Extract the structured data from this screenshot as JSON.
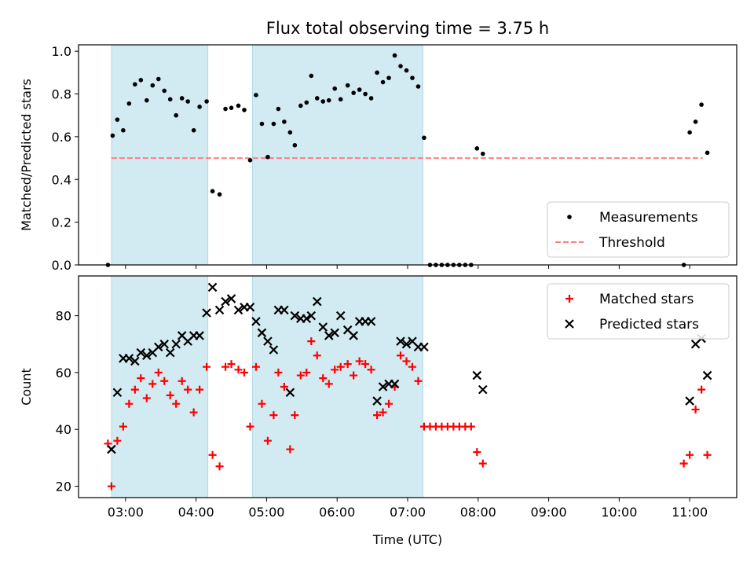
{
  "figure": {
    "title": "Flux total observing time = 3.75 h"
  },
  "chart_data": [
    {
      "type": "scatter",
      "ylabel": "Matched/Predicted stars",
      "xlabel": "",
      "xlim": [
        "02:20",
        "11:40"
      ],
      "ylim": [
        0,
        1.03
      ],
      "x_ticks": [
        "03:00",
        "04:00",
        "05:00",
        "06:00",
        "07:00",
        "08:00",
        "09:00",
        "10:00",
        "11:00"
      ],
      "y_ticks": [
        "0.0",
        "0.2",
        "0.4",
        "0.6",
        "0.8",
        "1.0"
      ],
      "grid": false,
      "legend_position": "lower-right",
      "shaded_intervals": [
        [
          "02:48",
          "04:10"
        ],
        [
          "04:48",
          "07:13"
        ]
      ],
      "threshold": {
        "name": "Threshold",
        "y": 0.5,
        "x_range": [
          "02:48",
          "11:11"
        ],
        "color": "#ff7f7f"
      },
      "series": [
        {
          "name": "Measurements",
          "color": "#000000",
          "marker": "dot",
          "points": [
            [
              "02:45",
              0.0
            ],
            [
              "02:49",
              0.605
            ],
            [
              "02:53",
              0.68
            ],
            [
              "02:58",
              0.63
            ],
            [
              "03:03",
              0.755
            ],
            [
              "03:08",
              0.845
            ],
            [
              "03:13",
              0.865
            ],
            [
              "03:18",
              0.77
            ],
            [
              "03:23",
              0.84
            ],
            [
              "03:28",
              0.87
            ],
            [
              "03:33",
              0.815
            ],
            [
              "03:38",
              0.775
            ],
            [
              "03:43",
              0.7
            ],
            [
              "03:48",
              0.78
            ],
            [
              "03:53",
              0.765
            ],
            [
              "03:58",
              0.63
            ],
            [
              "04:03",
              0.74
            ],
            [
              "04:09",
              0.765
            ],
            [
              "04:14",
              0.345
            ],
            [
              "04:20",
              0.33
            ],
            [
              "04:25",
              0.73
            ],
            [
              "04:30",
              0.735
            ],
            [
              "04:36",
              0.745
            ],
            [
              "04:41",
              0.725
            ],
            [
              "04:46",
              0.49
            ],
            [
              "04:51",
              0.795
            ],
            [
              "04:56",
              0.66
            ],
            [
              "05:01",
              0.505
            ],
            [
              "05:06",
              0.66
            ],
            [
              "05:10",
              0.73
            ],
            [
              "05:15",
              0.67
            ],
            [
              "05:20",
              0.62
            ],
            [
              "05:24",
              0.56
            ],
            [
              "05:29",
              0.745
            ],
            [
              "05:34",
              0.76
            ],
            [
              "05:38",
              0.885
            ],
            [
              "05:43",
              0.78
            ],
            [
              "05:48",
              0.765
            ],
            [
              "05:53",
              0.77
            ],
            [
              "05:58",
              0.825
            ],
            [
              "06:03",
              0.775
            ],
            [
              "06:09",
              0.84
            ],
            [
              "06:14",
              0.805
            ],
            [
              "06:19",
              0.82
            ],
            [
              "06:24",
              0.8
            ],
            [
              "06:29",
              0.78
            ],
            [
              "06:34",
              0.9
            ],
            [
              "06:39",
              0.855
            ],
            [
              "06:44",
              0.875
            ],
            [
              "06:49",
              0.98
            ],
            [
              "06:54",
              0.93
            ],
            [
              "06:59",
              0.91
            ],
            [
              "07:04",
              0.875
            ],
            [
              "07:09",
              0.835
            ],
            [
              "07:14",
              0.595
            ],
            [
              "07:19",
              0.0
            ],
            [
              "07:24",
              0.0
            ],
            [
              "07:29",
              0.0
            ],
            [
              "07:34",
              0.0
            ],
            [
              "07:39",
              0.0
            ],
            [
              "07:44",
              0.0
            ],
            [
              "07:49",
              0.0
            ],
            [
              "07:54",
              0.0
            ],
            [
              "07:59",
              0.545
            ],
            [
              "08:04",
              0.52
            ],
            [
              "10:55",
              0.0
            ],
            [
              "11:00",
              0.62
            ],
            [
              "11:05",
              0.67
            ],
            [
              "11:10",
              0.75
            ],
            [
              "11:15",
              0.525
            ]
          ]
        }
      ]
    },
    {
      "type": "scatter",
      "ylabel": "Count",
      "xlabel": "Time (UTC)",
      "xlim": [
        "02:20",
        "11:40"
      ],
      "ylim": [
        16,
        94
      ],
      "x_ticks": [
        "03:00",
        "04:00",
        "05:00",
        "06:00",
        "07:00",
        "08:00",
        "09:00",
        "10:00",
        "11:00"
      ],
      "y_ticks": [
        "20",
        "40",
        "60",
        "80"
      ],
      "grid": false,
      "legend_position": "upper-right",
      "shaded_intervals": [
        [
          "02:48",
          "04:10"
        ],
        [
          "04:48",
          "07:13"
        ]
      ],
      "series": [
        {
          "name": "Matched stars",
          "color": "#ff0000",
          "marker": "plus",
          "points": [
            [
              "02:45",
              35
            ],
            [
              "02:48",
              20
            ],
            [
              "02:53",
              36
            ],
            [
              "02:58",
              41
            ],
            [
              "03:03",
              49
            ],
            [
              "03:08",
              54
            ],
            [
              "03:13",
              58
            ],
            [
              "03:18",
              51
            ],
            [
              "03:23",
              56
            ],
            [
              "03:28",
              60
            ],
            [
              "03:33",
              57
            ],
            [
              "03:38",
              52
            ],
            [
              "03:43",
              49
            ],
            [
              "03:48",
              57
            ],
            [
              "03:53",
              54
            ],
            [
              "03:58",
              46
            ],
            [
              "04:03",
              54
            ],
            [
              "04:09",
              62
            ],
            [
              "04:14",
              31
            ],
            [
              "04:20",
              27
            ],
            [
              "04:25",
              62
            ],
            [
              "04:30",
              63
            ],
            [
              "04:36",
              61
            ],
            [
              "04:41",
              60
            ],
            [
              "04:46",
              41
            ],
            [
              "04:51",
              62
            ],
            [
              "04:56",
              49
            ],
            [
              "05:01",
              36
            ],
            [
              "05:06",
              45
            ],
            [
              "05:10",
              60
            ],
            [
              "05:15",
              55
            ],
            [
              "05:20",
              33
            ],
            [
              "05:24",
              45
            ],
            [
              "05:29",
              59
            ],
            [
              "05:34",
              60
            ],
            [
              "05:38",
              71
            ],
            [
              "05:43",
              66
            ],
            [
              "05:48",
              58
            ],
            [
              "05:53",
              56
            ],
            [
              "05:58",
              61
            ],
            [
              "06:03",
              62
            ],
            [
              "06:09",
              63
            ],
            [
              "06:14",
              59
            ],
            [
              "06:19",
              64
            ],
            [
              "06:24",
              63
            ],
            [
              "06:29",
              61
            ],
            [
              "06:34",
              45
            ],
            [
              "06:39",
              46
            ],
            [
              "06:44",
              49
            ],
            [
              "06:49",
              55
            ],
            [
              "06:54",
              66
            ],
            [
              "06:59",
              64
            ],
            [
              "07:04",
              62
            ],
            [
              "07:09",
              57
            ],
            [
              "07:14",
              41
            ],
            [
              "07:19",
              41
            ],
            [
              "07:24",
              41
            ],
            [
              "07:29",
              41
            ],
            [
              "07:34",
              41
            ],
            [
              "07:39",
              41
            ],
            [
              "07:44",
              41
            ],
            [
              "07:49",
              41
            ],
            [
              "07:54",
              41
            ],
            [
              "07:59",
              32
            ],
            [
              "08:04",
              28
            ],
            [
              "10:55",
              28
            ],
            [
              "11:00",
              31
            ],
            [
              "11:05",
              47
            ],
            [
              "11:10",
              54
            ],
            [
              "11:15",
              31
            ]
          ]
        },
        {
          "name": "Predicted stars",
          "color": "#000000",
          "marker": "x",
          "points": [
            [
              "02:48",
              33
            ],
            [
              "02:53",
              53
            ],
            [
              "02:58",
              65
            ],
            [
              "03:03",
              65
            ],
            [
              "03:08",
              64
            ],
            [
              "03:13",
              67
            ],
            [
              "03:18",
              66
            ],
            [
              "03:23",
              67
            ],
            [
              "03:28",
              69
            ],
            [
              "03:33",
              70
            ],
            [
              "03:38",
              67
            ],
            [
              "03:43",
              70
            ],
            [
              "03:48",
              73
            ],
            [
              "03:53",
              71
            ],
            [
              "03:58",
              73
            ],
            [
              "04:03",
              73
            ],
            [
              "04:09",
              81
            ],
            [
              "04:14",
              90
            ],
            [
              "04:20",
              82
            ],
            [
              "04:25",
              85
            ],
            [
              "04:30",
              86
            ],
            [
              "04:36",
              82
            ],
            [
              "04:41",
              83
            ],
            [
              "04:46",
              83
            ],
            [
              "04:51",
              78
            ],
            [
              "04:56",
              74
            ],
            [
              "05:01",
              71
            ],
            [
              "05:06",
              68
            ],
            [
              "05:10",
              82
            ],
            [
              "05:15",
              82
            ],
            [
              "05:20",
              53
            ],
            [
              "05:24",
              80
            ],
            [
              "05:29",
              79
            ],
            [
              "05:34",
              79
            ],
            [
              "05:38",
              80
            ],
            [
              "05:43",
              85
            ],
            [
              "05:48",
              76
            ],
            [
              "05:53",
              73
            ],
            [
              "05:58",
              74
            ],
            [
              "06:03",
              80
            ],
            [
              "06:09",
              75
            ],
            [
              "06:14",
              73
            ],
            [
              "06:19",
              78
            ],
            [
              "06:24",
              78
            ],
            [
              "06:29",
              78
            ],
            [
              "06:34",
              50
            ],
            [
              "06:39",
              55
            ],
            [
              "06:44",
              56
            ],
            [
              "06:49",
              56
            ],
            [
              "06:54",
              71
            ],
            [
              "06:59",
              70
            ],
            [
              "07:04",
              71
            ],
            [
              "07:09",
              69
            ],
            [
              "07:14",
              69
            ],
            [
              "07:59",
              59
            ],
            [
              "08:04",
              54
            ],
            [
              "11:00",
              50
            ],
            [
              "11:05",
              70
            ],
            [
              "11:10",
              72
            ],
            [
              "11:15",
              59
            ]
          ]
        }
      ]
    }
  ],
  "colors": {
    "shade": "#add8e6",
    "threshold": "#ff7f7f"
  }
}
